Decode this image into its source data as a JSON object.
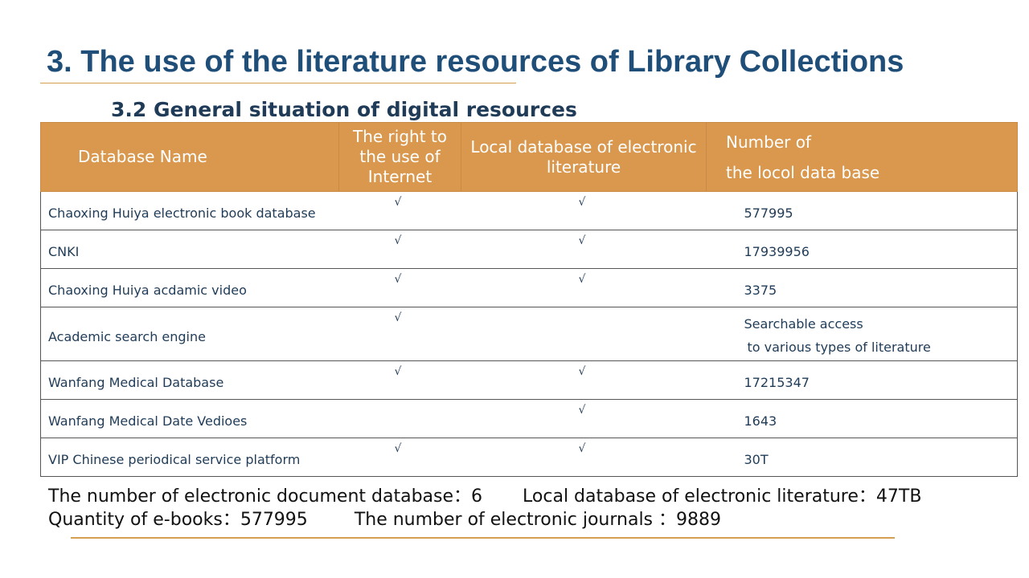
{
  "slide": {
    "title": "3. The use of the literature resources of Library Collections",
    "subtitle": "3.2 General situation of digital resources"
  },
  "table": {
    "headers": {
      "name": "Database Name",
      "internet": "The right to the use of Internet",
      "local": "Local database of electronic literature",
      "number_line1": "Number of",
      "number_line2": "the locol data base"
    },
    "check_mark": "√",
    "rows": [
      {
        "name": "Chaoxing Huiya electronic book database",
        "internet": "√",
        "local": "√",
        "number": "577995",
        "number_line2": ""
      },
      {
        "name": "CNKI",
        "internet": "√",
        "local": "√",
        "number": "17939956",
        "number_line2": ""
      },
      {
        "name": "Chaoxing Huiya acdamic video",
        "internet": "√",
        "local": "√",
        "number": "3375",
        "number_line2": ""
      },
      {
        "name": "Academic search engine",
        "internet": "√",
        "local": "",
        "number": "Searchable access",
        "number_line2": "to various types of literature"
      },
      {
        "name": "Wanfang Medical Database",
        "internet": "√",
        "local": "√",
        "number": "17215347",
        "number_line2": ""
      },
      {
        "name": "Wanfang Medical Date Vedioes",
        "internet": "",
        "local": "√",
        "number": "1643",
        "number_line2": ""
      },
      {
        "name": "VIP Chinese periodical service platform",
        "internet": "√",
        "local": "√",
        "number": "30T",
        "number_line2": ""
      }
    ]
  },
  "stats": {
    "db_count": "The number of electronic document database：6",
    "local_size": "Local database of electronic literature：47TB",
    "ebooks": "Quantity of e-books：577995",
    "journals": "The number of electronic journals ：9889"
  },
  "colors": {
    "title": "#1f4e79",
    "header_bg": "#d9984e",
    "accent_rule": "#d4a04f",
    "body_text": "#1f3b57"
  }
}
